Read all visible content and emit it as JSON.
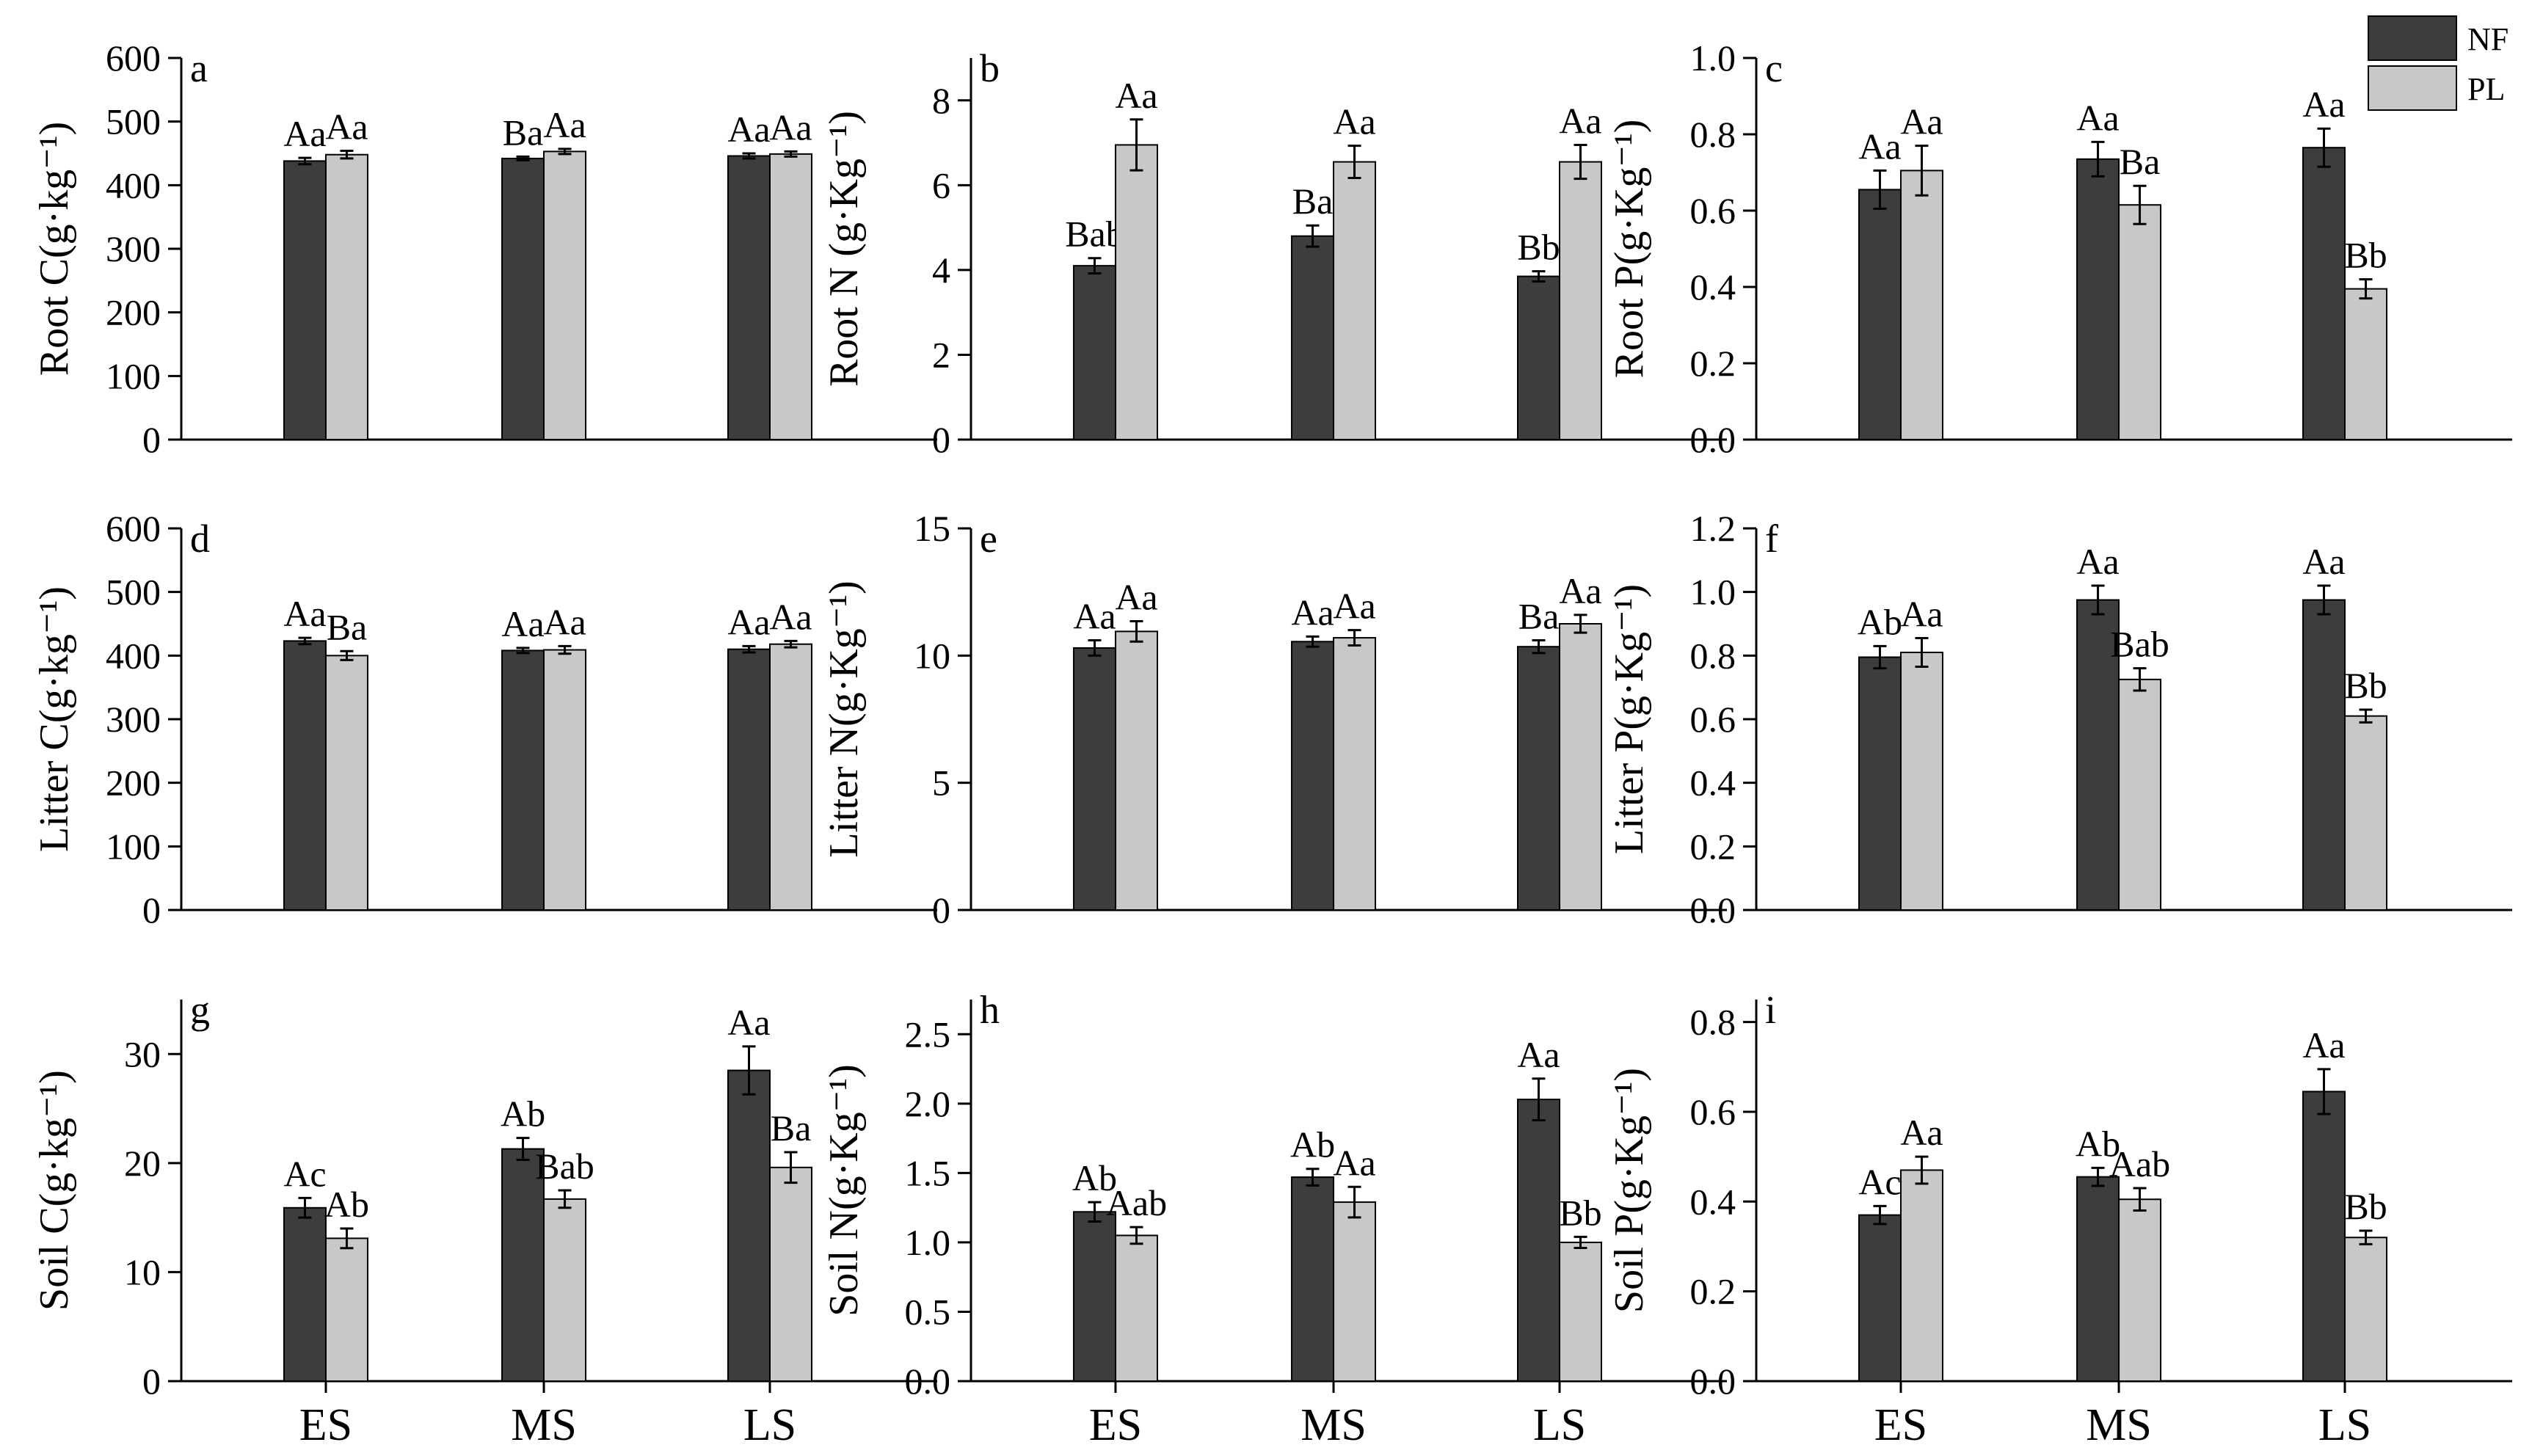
{
  "legend": [
    {
      "name": "NF",
      "color": "#3d3d3d"
    },
    {
      "name": "PL",
      "color": "#c8c8c8"
    }
  ],
  "chart_data": [
    {
      "type": "bar",
      "panel": "a",
      "ylabel": "Root C(g·kg⁻¹)",
      "ylim": [
        0,
        600
      ],
      "yticks": [
        0,
        100,
        200,
        300,
        400,
        500,
        600
      ],
      "tick_decimals": 0,
      "categories": [
        "ES",
        "MS",
        "LS"
      ],
      "series": [
        {
          "name": "NF",
          "values": [
            438,
            442,
            446
          ],
          "errors": [
            5,
            3,
            4
          ],
          "labels": [
            "Aa",
            "Ba",
            "Aa"
          ]
        },
        {
          "name": "PL",
          "values": [
            448,
            453,
            449
          ],
          "errors": [
            6,
            4,
            4
          ],
          "labels": [
            "Aa",
            "Aa",
            "Aa"
          ]
        }
      ]
    },
    {
      "type": "bar",
      "panel": "b",
      "ylabel": "Root N (g·Kg⁻¹)",
      "ylim": [
        0,
        9
      ],
      "yticks": [
        0,
        2,
        4,
        6,
        8
      ],
      "tick_decimals": 0,
      "categories": [
        "ES",
        "MS",
        "LS"
      ],
      "series": [
        {
          "name": "NF",
          "values": [
            4.1,
            4.8,
            3.85
          ],
          "errors": [
            0.18,
            0.25,
            0.12
          ],
          "labels": [
            "Bab",
            "Ba",
            "Bb"
          ]
        },
        {
          "name": "PL",
          "values": [
            6.95,
            6.55,
            6.55
          ],
          "errors": [
            0.6,
            0.38,
            0.4
          ],
          "labels": [
            "Aa",
            "Aa",
            "Aa"
          ]
        }
      ]
    },
    {
      "type": "bar",
      "panel": "c",
      "ylabel": "Root P(g·Kg⁻¹)",
      "ylim": [
        0,
        1.0
      ],
      "yticks": [
        0,
        0.2,
        0.4,
        0.6,
        0.8,
        1.0
      ],
      "tick_decimals": 1,
      "categories": [
        "ES",
        "MS",
        "LS"
      ],
      "series": [
        {
          "name": "NF",
          "values": [
            0.655,
            0.735,
            0.765
          ],
          "errors": [
            0.05,
            0.045,
            0.05
          ],
          "labels": [
            "Aa",
            "Aa",
            "Aa"
          ]
        },
        {
          "name": "PL",
          "values": [
            0.705,
            0.615,
            0.395
          ],
          "errors": [
            0.065,
            0.05,
            0.025
          ],
          "labels": [
            "Aa",
            "Ba",
            "Bb"
          ]
        }
      ]
    },
    {
      "type": "bar",
      "panel": "d",
      "ylabel": "Litter C(g·kg⁻¹)",
      "ylim": [
        0,
        600
      ],
      "yticks": [
        0,
        100,
        200,
        300,
        400,
        500,
        600
      ],
      "tick_decimals": 0,
      "categories": [
        "ES",
        "MS",
        "LS"
      ],
      "series": [
        {
          "name": "NF",
          "values": [
            423,
            408,
            410
          ],
          "errors": [
            5,
            4,
            5
          ],
          "labels": [
            "Aa",
            "Aa",
            "Aa"
          ]
        },
        {
          "name": "PL",
          "values": [
            400,
            409,
            418
          ],
          "errors": [
            7,
            6,
            5
          ],
          "labels": [
            "Ba",
            "Aa",
            "Aa"
          ]
        }
      ]
    },
    {
      "type": "bar",
      "panel": "e",
      "ylabel": "Litter N(g·Kg⁻¹)",
      "ylim": [
        0,
        15
      ],
      "yticks": [
        0,
        5,
        10,
        15
      ],
      "tick_decimals": 0,
      "categories": [
        "ES",
        "MS",
        "LS"
      ],
      "series": [
        {
          "name": "NF",
          "values": [
            10.3,
            10.55,
            10.35
          ],
          "errors": [
            0.3,
            0.2,
            0.25
          ],
          "labels": [
            "Aa",
            "Aa",
            "Ba"
          ]
        },
        {
          "name": "PL",
          "values": [
            10.95,
            10.7,
            11.25
          ],
          "errors": [
            0.4,
            0.3,
            0.35
          ],
          "labels": [
            "Aa",
            "Aa",
            "Aa"
          ]
        }
      ]
    },
    {
      "type": "bar",
      "panel": "f",
      "ylabel": "Litter P(g·Kg⁻¹)",
      "ylim": [
        0,
        1.2
      ],
      "yticks": [
        0,
        0.2,
        0.4,
        0.6,
        0.8,
        1.0,
        1.2
      ],
      "tick_decimals": 1,
      "categories": [
        "ES",
        "MS",
        "LS"
      ],
      "series": [
        {
          "name": "NF",
          "values": [
            0.795,
            0.975,
            0.975
          ],
          "errors": [
            0.035,
            0.045,
            0.045
          ],
          "labels": [
            "Ab",
            "Aa",
            "Aa"
          ]
        },
        {
          "name": "PL",
          "values": [
            0.81,
            0.725,
            0.61
          ],
          "errors": [
            0.045,
            0.035,
            0.02
          ],
          "labels": [
            "Aa",
            "Bab",
            "Bb"
          ]
        }
      ]
    },
    {
      "type": "bar",
      "panel": "g",
      "ylabel": "Soil C(g·kg⁻¹)",
      "ylim": [
        0,
        35
      ],
      "yticks": [
        0,
        10,
        20,
        30
      ],
      "tick_decimals": 0,
      "categories": [
        "ES",
        "MS",
        "LS"
      ],
      "series": [
        {
          "name": "NF",
          "values": [
            15.9,
            21.3,
            28.5
          ],
          "errors": [
            0.9,
            1.0,
            2.2
          ],
          "labels": [
            "Ac",
            "Ab",
            "Aa"
          ]
        },
        {
          "name": "PL",
          "values": [
            13.1,
            16.7,
            19.6
          ],
          "errors": [
            0.9,
            0.8,
            1.4
          ],
          "labels": [
            "Ab",
            "Bab",
            "Ba"
          ]
        }
      ]
    },
    {
      "type": "bar",
      "panel": "h",
      "ylabel": "Soil N(g·Kg⁻¹)",
      "ylim": [
        0,
        2.75
      ],
      "yticks": [
        0,
        0.5,
        1.0,
        1.5,
        2.0,
        2.5
      ],
      "tick_decimals": 1,
      "categories": [
        "ES",
        "MS",
        "LS"
      ],
      "series": [
        {
          "name": "NF",
          "values": [
            1.22,
            1.47,
            2.03
          ],
          "errors": [
            0.07,
            0.06,
            0.15
          ],
          "labels": [
            "Ab",
            "Ab",
            "Aa"
          ]
        },
        {
          "name": "PL",
          "values": [
            1.05,
            1.29,
            1.0
          ],
          "errors": [
            0.06,
            0.11,
            0.04
          ],
          "labels": [
            "Aab",
            "Aa",
            "Bb"
          ]
        }
      ]
    },
    {
      "type": "bar",
      "panel": "i",
      "ylabel": "Soil P(g·Kg⁻¹)",
      "ylim": [
        0,
        0.85
      ],
      "yticks": [
        0,
        0.2,
        0.4,
        0.6,
        0.8
      ],
      "tick_decimals": 1,
      "categories": [
        "ES",
        "MS",
        "LS"
      ],
      "series": [
        {
          "name": "NF",
          "values": [
            0.37,
            0.455,
            0.645
          ],
          "errors": [
            0.02,
            0.02,
            0.05
          ],
          "labels": [
            "Ac",
            "Ab",
            "Aa"
          ]
        },
        {
          "name": "PL",
          "values": [
            0.47,
            0.405,
            0.32
          ],
          "errors": [
            0.03,
            0.025,
            0.015
          ],
          "labels": [
            "Aa",
            "Aab",
            "Bb"
          ]
        }
      ]
    }
  ]
}
